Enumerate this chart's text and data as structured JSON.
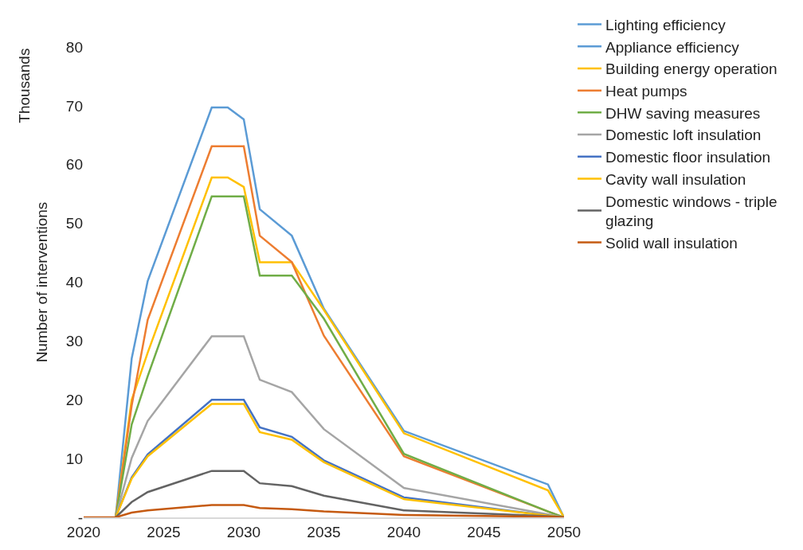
{
  "chart_data": {
    "type": "line",
    "ylabel": "Number of interventions",
    "annotations": [
      "Thousands"
    ],
    "x": [
      2020,
      2021,
      2022,
      2023,
      2024,
      2028,
      2029,
      2030,
      2031,
      2033,
      2035,
      2040,
      2049,
      2050
    ],
    "xlim": [
      2020,
      2050
    ],
    "xticks": [
      2020,
      2025,
      2030,
      2035,
      2040,
      2045,
      2050
    ],
    "ylim": [
      0,
      80
    ],
    "yticks": [
      {
        "value": 0,
        "label": "-"
      },
      10,
      20,
      30,
      40,
      50,
      60,
      70,
      80
    ],
    "legend": "right",
    "marker": "none",
    "line_style": "solid",
    "series": [
      {
        "name": "Lighting efficiency",
        "color": "#5b9bd5",
        "values": [
          null,
          null,
          0,
          27,
          40.2,
          69.7,
          69.7,
          67.7,
          52.4,
          47.9,
          35.5,
          14.7,
          5.6,
          0
        ]
      },
      {
        "name": "Appliance efficiency",
        "color": "#5b9bd5",
        "values": [
          null,
          null,
          null,
          null,
          null,
          null,
          null,
          null,
          null,
          null,
          null,
          null,
          null,
          null
        ]
      },
      {
        "name": "Building energy operation",
        "color": "#ffc000",
        "values": [
          null,
          null,
          0,
          20,
          28,
          57.8,
          57.8,
          56.2,
          43.4,
          43.4,
          35.3,
          14.3,
          4.6,
          0
        ]
      },
      {
        "name": "Heat pumps",
        "color": "#ed7d31",
        "values": [
          null,
          null,
          0,
          19,
          33.6,
          63.1,
          63.1,
          63.1,
          47.9,
          43.4,
          30.9,
          10.4,
          1.0,
          0
        ]
      },
      {
        "name": "DHW saving measures",
        "color": "#70ad47",
        "values": [
          null,
          null,
          0,
          15.8,
          24,
          54.6,
          54.6,
          54.6,
          41.1,
          41.1,
          33.8,
          10.8,
          1.0,
          0
        ]
      },
      {
        "name": "Domestic loft insulation",
        "color": "#a5a5a5",
        "values": [
          null,
          null,
          0,
          10.1,
          16.4,
          30.8,
          30.8,
          30.8,
          23.4,
          21.3,
          15.0,
          5.0,
          0.5,
          0
        ]
      },
      {
        "name": "Domestic floor insulation",
        "color": "#4472c4",
        "values": [
          null,
          null,
          0,
          6.8,
          10.7,
          20.0,
          20.0,
          20.0,
          15.3,
          13.7,
          9.7,
          3.4,
          0.3,
          0
        ]
      },
      {
        "name": "Cavity wall insulation",
        "color": "#ffc000",
        "values": [
          null,
          null,
          0,
          6.6,
          10.4,
          19.3,
          19.3,
          19.3,
          14.5,
          13.2,
          9.4,
          3.1,
          0.3,
          0
        ]
      },
      {
        "name": "Domestic windows - triple glazing",
        "color": "#636363",
        "values": [
          null,
          null,
          0,
          2.6,
          4.3,
          7.9,
          7.9,
          7.9,
          5.8,
          5.3,
          3.7,
          1.2,
          0.2,
          0
        ]
      },
      {
        "name": "Solid wall insulation",
        "color": "#c55a11",
        "values": [
          0,
          0,
          0,
          0.8,
          1.2,
          2.1,
          2.1,
          2.1,
          1.6,
          1.4,
          1.0,
          0.4,
          0.1,
          0
        ]
      }
    ]
  }
}
